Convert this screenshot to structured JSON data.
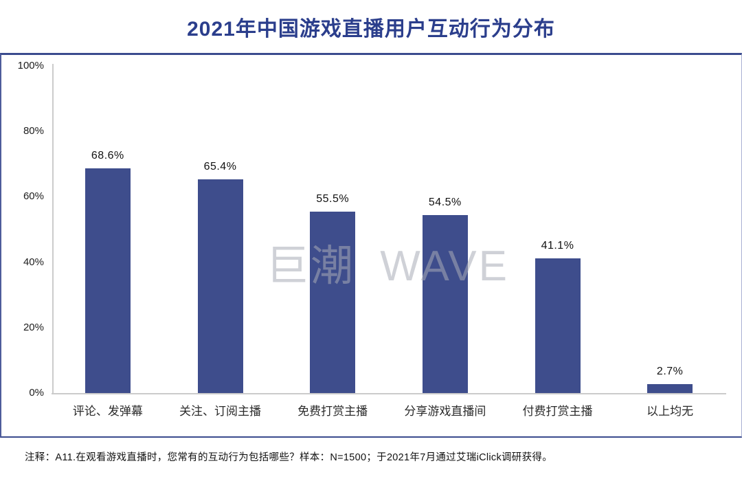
{
  "header": {
    "title": "2021年中国游戏直播用户互动行为分布"
  },
  "watermark": {
    "text": "巨潮 WAVE"
  },
  "footnote": {
    "text": "注释：A11.在观看游戏直播时，您常有的互动行为包括哪些？样本：N=1500；于2021年7月通过艾瑞iClick调研获得。"
  },
  "colors": {
    "bar": "#3E4D8C",
    "title": "#2B3E8C",
    "frame_line": "#3A4B8E",
    "axis_line": "#CBCBCB",
    "watermark": "#D4D6DC"
  },
  "chart_data": {
    "type": "bar",
    "title": "2021年中国游戏直播用户互动行为分布",
    "categories": [
      "评论、发弹幕",
      "关注、订阅主播",
      "免费打赏主播",
      "分享游戏直播间",
      "付费打赏主播",
      "以上均无"
    ],
    "values": [
      68.6,
      65.4,
      55.5,
      54.5,
      41.1,
      2.7
    ],
    "value_labels": [
      "68.6%",
      "65.4%",
      "55.5%",
      "54.5%",
      "41.1%",
      "2.7%"
    ],
    "y_ticks": [
      {
        "value": 100,
        "label": "100%"
      },
      {
        "value": 80,
        "label": "80%"
      },
      {
        "value": 60,
        "label": "60%"
      },
      {
        "value": 40,
        "label": "40%"
      },
      {
        "value": 20,
        "label": "20%"
      },
      {
        "value": 0,
        "label": "0%"
      }
    ],
    "xlabel": "",
    "ylabel": "",
    "ylim": [
      0,
      100
    ],
    "grid": false,
    "legend": null,
    "bar_color": "#3E4D8C"
  }
}
